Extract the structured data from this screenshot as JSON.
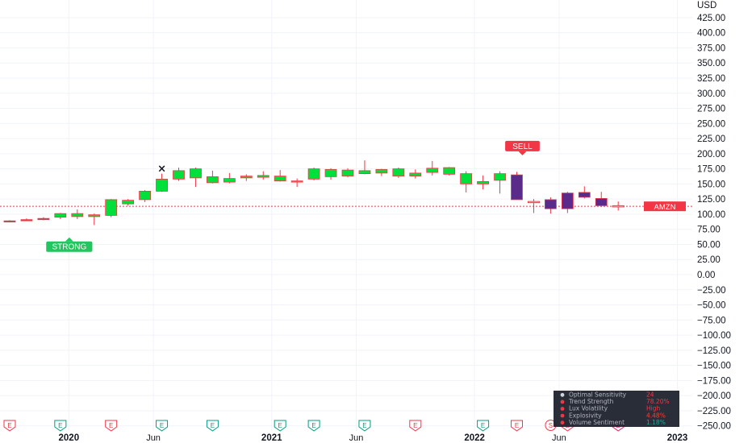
{
  "chart_data": {
    "type": "candlestick",
    "currency_label": "USD",
    "ylim": [
      -255,
      440
    ],
    "y_ticks": [
      425,
      400,
      375,
      350,
      325,
      300,
      275,
      250,
      225,
      200,
      175,
      150,
      125,
      100,
      75,
      50,
      25,
      0,
      -25,
      -50,
      -75,
      -100,
      -125,
      -150,
      -175,
      -200,
      -225,
      -250
    ],
    "y_tick_labels": [
      "425.00",
      "400.00",
      "375.00",
      "350.00",
      "325.00",
      "300.00",
      "275.00",
      "250.00",
      "225.00",
      "200.00",
      "175.00",
      "150.00",
      "125.00",
      "100.00",
      "75.00",
      "50.00",
      "25.00",
      "0.00",
      "−25.00",
      "−50.00",
      "−75.00",
      "−100.00",
      "−125.00",
      "−150.00",
      "−175.00",
      "−200.00",
      "−225.00",
      "−250.00"
    ],
    "x_labels": [
      {
        "text": "2020",
        "bar": 3.5,
        "bold": true
      },
      {
        "text": "Jun",
        "bar": 8.5,
        "bold": false
      },
      {
        "text": "2021",
        "bar": 15.5,
        "bold": true
      },
      {
        "text": "Jun",
        "bar": 20.5,
        "bold": false
      },
      {
        "text": "2022",
        "bar": 27.5,
        "bold": true
      },
      {
        "text": "Jun",
        "bar": 32.5,
        "bold": false
      },
      {
        "text": "2023",
        "bar": 39.5,
        "bold": true
      }
    ],
    "grid": true,
    "candles": [
      {
        "o": 88,
        "h": 90,
        "l": 87,
        "c": 89,
        "color": "#089981"
      },
      {
        "o": 90,
        "h": 93,
        "l": 89,
        "c": 91,
        "color": "#089981"
      },
      {
        "o": 91,
        "h": 95,
        "l": 90,
        "c": 93,
        "color": "#089981"
      },
      {
        "o": 95,
        "h": 102,
        "l": 92,
        "c": 101,
        "color": "#00e03a"
      },
      {
        "o": 96,
        "h": 108,
        "l": 92,
        "c": 101,
        "color": "#00e03a"
      },
      {
        "o": 96,
        "h": 101,
        "l": 82,
        "c": 99,
        "color": "#00e03a"
      },
      {
        "o": 98,
        "h": 125,
        "l": 95,
        "c": 124,
        "color": "#00e03a"
      },
      {
        "o": 117,
        "h": 125,
        "l": 114,
        "c": 123,
        "color": "#00e03a"
      },
      {
        "o": 124,
        "h": 140,
        "l": 120,
        "c": 138,
        "color": "#00e03a"
      },
      {
        "o": 138,
        "h": 167,
        "l": 137,
        "c": 158,
        "color": "#00e03a"
      },
      {
        "o": 158,
        "h": 177,
        "l": 155,
        "c": 172,
        "color": "#00e03a"
      },
      {
        "o": 160,
        "h": 177,
        "l": 145,
        "c": 175,
        "color": "#00e03a"
      },
      {
        "o": 152,
        "h": 172,
        "l": 151,
        "c": 162,
        "color": "#00e03a"
      },
      {
        "o": 153,
        "h": 168,
        "l": 151,
        "c": 159,
        "color": "#00e03a"
      },
      {
        "o": 160,
        "h": 166,
        "l": 155,
        "c": 163,
        "color": "#00e03a"
      },
      {
        "o": 161,
        "h": 171,
        "l": 157,
        "c": 164,
        "color": "#00e03a"
      },
      {
        "o": 155,
        "h": 173,
        "l": 154,
        "c": 163,
        "color": "#00e03a"
      },
      {
        "o": 155,
        "h": 159,
        "l": 145,
        "c": 154,
        "color": "#00e03a"
      },
      {
        "o": 158,
        "h": 177,
        "l": 156,
        "c": 175,
        "color": "#00e03a"
      },
      {
        "o": 162,
        "h": 176,
        "l": 157,
        "c": 174,
        "color": "#00e03a"
      },
      {
        "o": 163,
        "h": 176,
        "l": 161,
        "c": 173,
        "color": "#00e03a"
      },
      {
        "o": 167,
        "h": 189,
        "l": 166,
        "c": 172,
        "color": "#00e03a"
      },
      {
        "o": 168,
        "h": 175,
        "l": 163,
        "c": 174,
        "color": "#00e03a"
      },
      {
        "o": 163,
        "h": 177,
        "l": 160,
        "c": 175,
        "color": "#00e03a"
      },
      {
        "o": 163,
        "h": 174,
        "l": 159,
        "c": 168,
        "color": "#00e03a"
      },
      {
        "o": 169,
        "h": 188,
        "l": 164,
        "c": 176,
        "color": "#00e03a"
      },
      {
        "o": 166,
        "h": 178,
        "l": 164,
        "c": 177,
        "color": "#00e03a"
      },
      {
        "o": 150,
        "h": 171,
        "l": 136,
        "c": 167,
        "color": "#00e03a"
      },
      {
        "o": 150,
        "h": 164,
        "l": 141,
        "c": 154,
        "color": "#00e03a"
      },
      {
        "o": 156,
        "h": 171,
        "l": 134,
        "c": 167,
        "color": "#00e03a"
      },
      {
        "o": 165,
        "h": 170,
        "l": 124,
        "c": 124,
        "color": "#5b2b8c"
      },
      {
        "o": 120,
        "h": 125,
        "l": 102,
        "c": 121,
        "color": "#ffffff"
      },
      {
        "o": 124,
        "h": 128,
        "l": 101,
        "c": 109,
        "color": "#5b2b8c"
      },
      {
        "o": 109,
        "h": 137,
        "l": 102,
        "c": 135,
        "color": "#5b2b8c"
      },
      {
        "o": 136,
        "h": 146,
        "l": 126,
        "c": 128,
        "color": "#5b2b8c"
      },
      {
        "o": 126,
        "h": 137,
        "l": 112,
        "c": 114,
        "color": "#5b2b8c"
      },
      {
        "o": 113,
        "h": 121,
        "l": 106,
        "c": 114,
        "color": "#ffffff"
      }
    ],
    "x_marker": {
      "bar": 9,
      "value": 175,
      "symbol": "×"
    },
    "current_price_line": 113,
    "price_tag": "AMZN",
    "signals": [
      {
        "text": "STRONG",
        "bar": 3,
        "value": 55,
        "position": "below",
        "color": "#22c55e"
      },
      {
        "text": "SELL",
        "bar": 30,
        "value": 204,
        "position": "above",
        "color": "#f23645"
      }
    ],
    "event_markers": [
      {
        "bar": 0,
        "text": "E",
        "color": "#f23645"
      },
      {
        "bar": 3,
        "text": "E",
        "color": "#089981"
      },
      {
        "bar": 6,
        "text": "E",
        "color": "#f23645"
      },
      {
        "bar": 9,
        "text": "E",
        "color": "#089981"
      },
      {
        "bar": 12,
        "text": "E",
        "color": "#089981"
      },
      {
        "bar": 16,
        "text": "E",
        "color": "#089981"
      },
      {
        "bar": 18,
        "text": "E",
        "color": "#089981"
      },
      {
        "bar": 21,
        "text": "E",
        "color": "#089981"
      },
      {
        "bar": 24,
        "text": "E",
        "color": "#f23645"
      },
      {
        "bar": 28,
        "text": "E",
        "color": "#089981"
      },
      {
        "bar": 30,
        "text": "E",
        "color": "#f23645"
      },
      {
        "bar": 32,
        "text": "S",
        "color": "#f23645"
      },
      {
        "bar": 33,
        "text": "E",
        "color": "#f23645"
      },
      {
        "bar": 36,
        "text": "E",
        "color": "#e91e63"
      }
    ]
  },
  "panel": {
    "rows": [
      {
        "icon": "sensitivity-icon",
        "label": "Optimal Sensitivity",
        "value": "24",
        "value_color": "#f23645"
      },
      {
        "icon": "trend-icon",
        "label": "Trend Strength",
        "value": "78.20%",
        "value_color": "#f23645"
      },
      {
        "icon": "volatility-icon",
        "label": "Lux Volatility",
        "value": "High",
        "value_color": "#f23645"
      },
      {
        "icon": "explosivity-icon",
        "label": "Explosivity",
        "value": "4.48%",
        "value_color": "#ff3b30"
      },
      {
        "icon": "volume-icon",
        "label": "Volume Sentiment",
        "value": "1.18%",
        "value_color": "#26a69a"
      }
    ]
  }
}
